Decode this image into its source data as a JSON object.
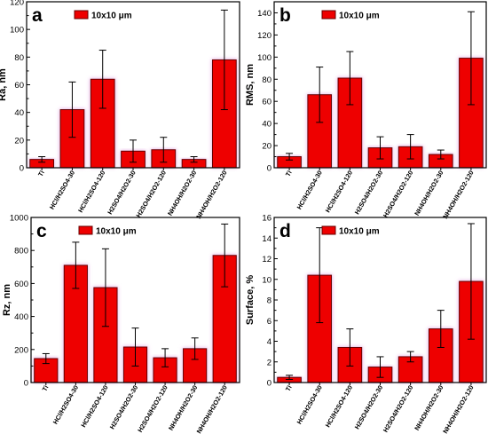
{
  "colors": {
    "bar_fill": "#ee0000",
    "bar_stroke": "#660000",
    "bar_glow": "#e8b4e8",
    "axis": "#000000"
  },
  "chart_data": [
    {
      "type": "bar",
      "panel_label": "a",
      "ylabel": "Ra, nm",
      "xlabel": "",
      "legend": "10x10 μm",
      "legend_position": "top-left",
      "ylim": [
        0,
        120
      ],
      "yticks": [
        0,
        20,
        40,
        60,
        80,
        100,
        120
      ],
      "categories": [
        "Ti",
        "HCl/H2SO4-30",
        "HCl/H2SO4-120",
        "H2SO4/H2O2-30",
        "H2SO4/H2O2-120",
        "NH4OH/H2O2-30",
        "NH4OH/H2O2-120"
      ],
      "values": [
        6,
        42,
        64,
        12,
        13,
        6,
        78
      ],
      "errors": [
        2,
        20,
        21,
        8,
        9,
        2,
        36
      ]
    },
    {
      "type": "bar",
      "panel_label": "b",
      "ylabel": "RMS, nm",
      "xlabel": "",
      "legend": "10x10 μm",
      "legend_position": "top-left",
      "ylim": [
        0,
        150
      ],
      "yticks": [
        0,
        20,
        40,
        60,
        80,
        100,
        120,
        140
      ],
      "categories": [
        "Ti",
        "HCl/H2SO4-30",
        "HCl/H2SO4-120",
        "H2SO4/H2O2-30",
        "H2SO4/H2O2-120",
        "NH4OH/H2O2-30",
        "NH4OH/H2O2-120"
      ],
      "values": [
        10,
        66,
        81,
        18,
        19,
        12,
        99
      ],
      "errors": [
        3,
        25,
        24,
        10,
        11,
        4,
        42
      ]
    },
    {
      "type": "bar",
      "panel_label": "c",
      "ylabel": "Rz, nm",
      "xlabel": "",
      "legend": "10x10 μm",
      "legend_position": "top-left",
      "ylim": [
        0,
        1000
      ],
      "yticks": [
        0,
        200,
        400,
        600,
        800,
        1000
      ],
      "categories": [
        "Ti",
        "HCl/H2SO4-30",
        "HCl/H2SO4-120",
        "H2SO4/H2O2-30",
        "H2SO4/H2O2-120",
        "NH4OH/H2O2-30",
        "NH4OH/H2O2-120"
      ],
      "values": [
        145,
        710,
        575,
        215,
        150,
        205,
        770
      ],
      "errors": [
        30,
        140,
        235,
        115,
        55,
        65,
        190
      ]
    },
    {
      "type": "bar",
      "panel_label": "d",
      "ylabel": "Surface, %",
      "xlabel": "",
      "legend": "10x10 μm",
      "legend_position": "top-left",
      "ylim": [
        0,
        16
      ],
      "yticks": [
        0,
        2,
        4,
        6,
        8,
        10,
        12,
        14,
        16
      ],
      "categories": [
        "Ti",
        "HCl/H2SO4-30",
        "HCl/H2SO4-120",
        "H2SO4/H2O2-30",
        "H2SO4/H2O2-120",
        "NH4OH/H2O2-30",
        "NH4OH/H2O2-120"
      ],
      "values": [
        0.5,
        10.4,
        3.4,
        1.5,
        2.5,
        5.2,
        9.8
      ],
      "errors": [
        0.2,
        4.6,
        1.8,
        1.0,
        0.5,
        1.8,
        5.6
      ]
    }
  ]
}
